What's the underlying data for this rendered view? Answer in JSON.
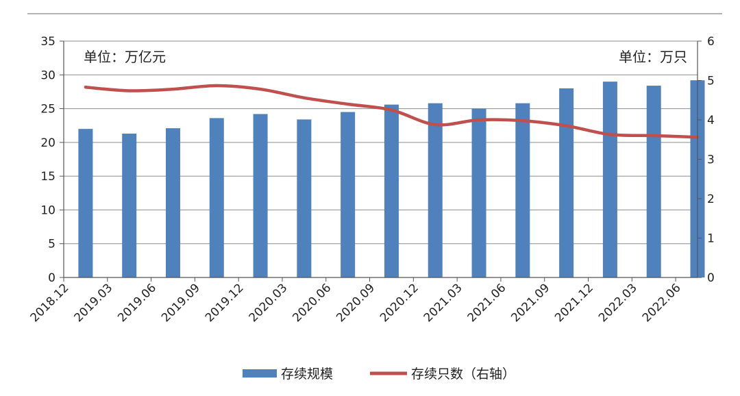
{
  "chart_data": {
    "type": "bar",
    "categories": [
      "2018.12",
      "2019.03",
      "2019.06",
      "2019.09",
      "2019.12",
      "2020.03",
      "2020.06",
      "2020.09",
      "2020.12",
      "2021.03",
      "2021.06",
      "2021.09",
      "2021.12",
      "2022.03",
      "2022.06"
    ],
    "series": [
      {
        "name": "存续规模",
        "type": "bar",
        "axis": "left",
        "color": "#4f81bd",
        "values": [
          22.0,
          21.3,
          22.1,
          23.6,
          24.2,
          23.4,
          24.5,
          25.6,
          25.8,
          25.0,
          25.8,
          28.0,
          29.0,
          28.4,
          29.2
        ]
      },
      {
        "name": "存续只数（右轴）",
        "type": "line",
        "axis": "right",
        "color": "#c0504d",
        "values": [
          4.83,
          4.74,
          4.78,
          4.87,
          4.78,
          4.56,
          4.4,
          4.25,
          3.88,
          4.0,
          3.98,
          3.85,
          3.63,
          3.6,
          3.56
        ]
      }
    ],
    "left_axis": {
      "ylim": [
        0,
        35
      ],
      "ticks": [
        "0",
        "5",
        "10",
        "15",
        "20",
        "25",
        "30",
        "35"
      ],
      "unit": "单位：万亿元"
    },
    "right_axis": {
      "ylim": [
        0,
        6
      ],
      "ticks": [
        "0",
        "1",
        "2",
        "3",
        "4",
        "5",
        "6"
      ],
      "unit": "单位：万只"
    },
    "grid": true,
    "legend_position": "bottom"
  }
}
